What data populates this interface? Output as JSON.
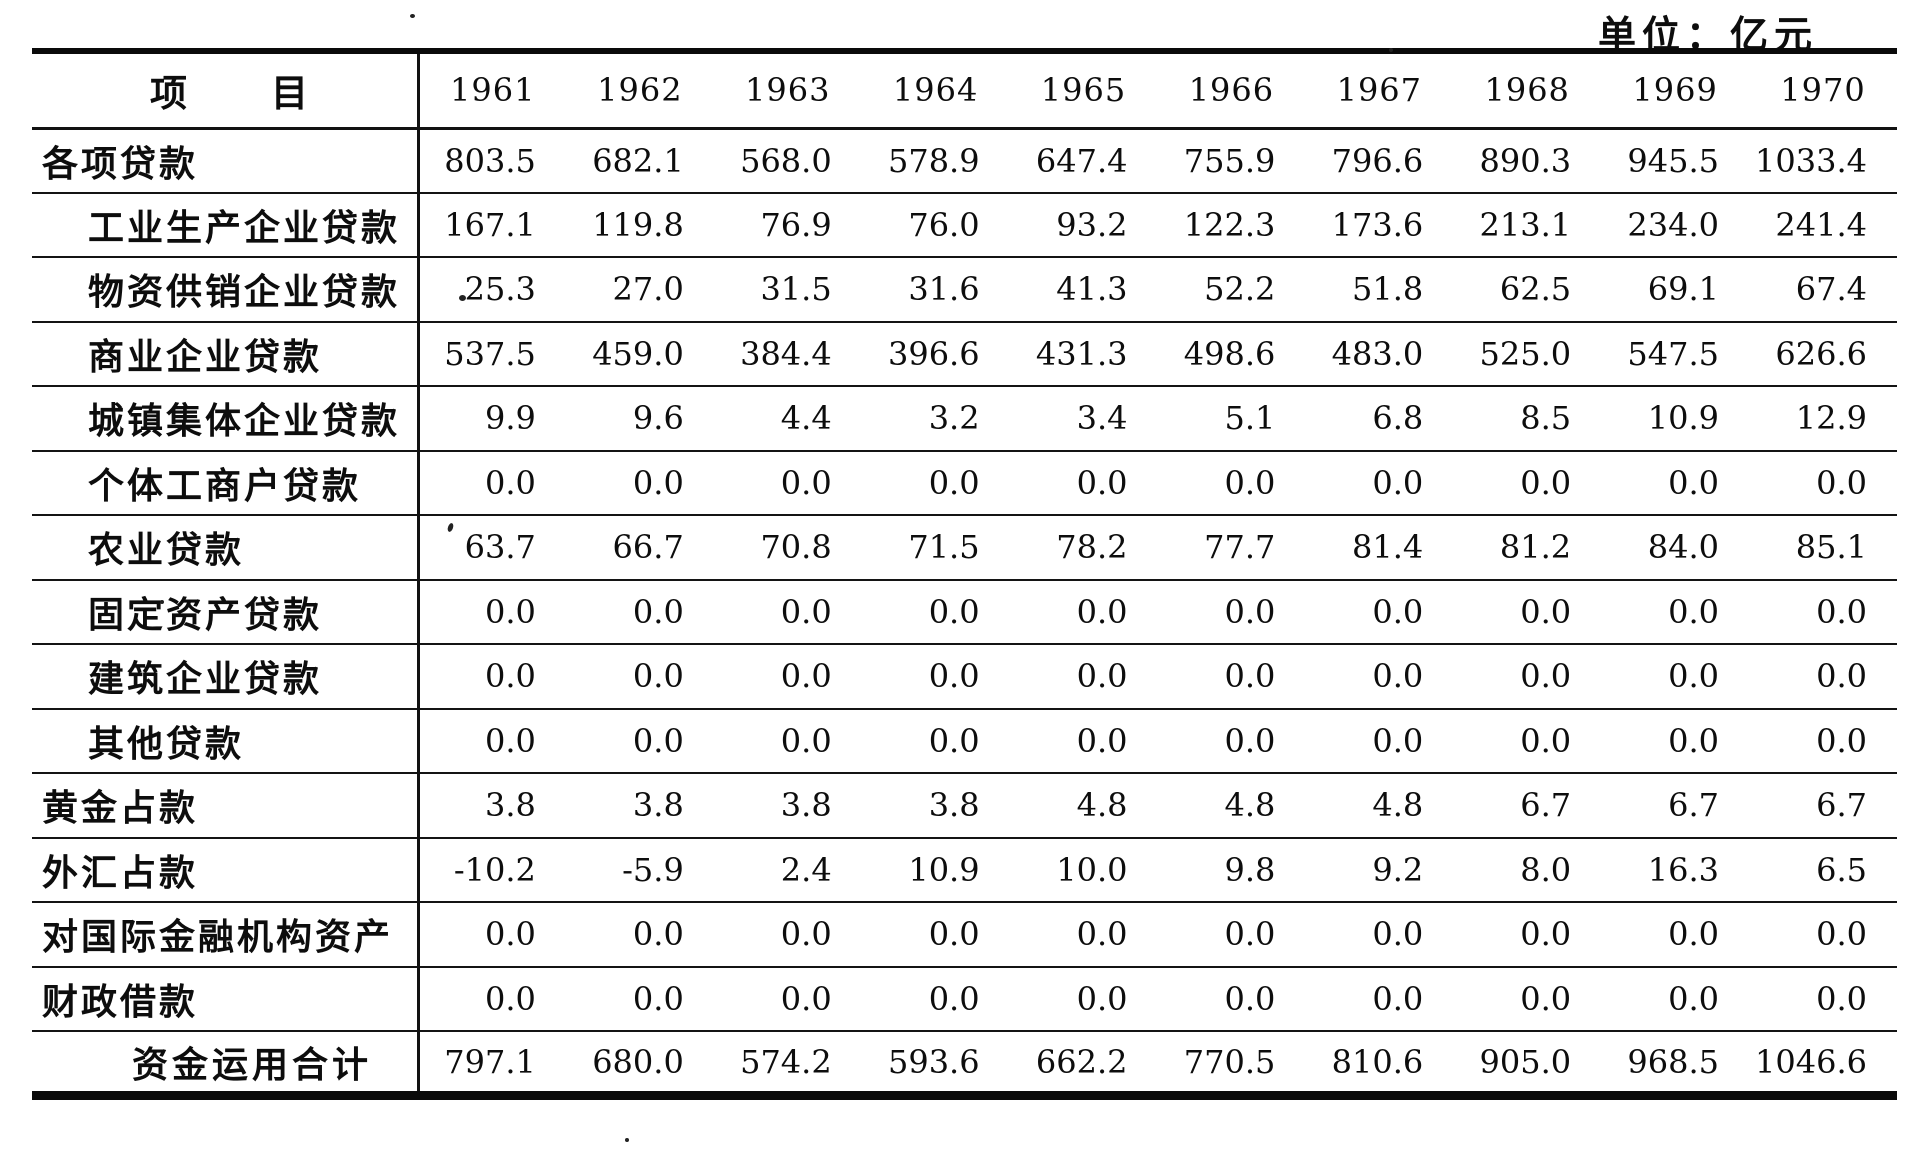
{
  "unit_label": "单位：亿元",
  "colors": {
    "ink": "#0d0d0d",
    "paper": "#ffffff"
  },
  "table": {
    "item_header": {
      "first": "项",
      "second": "目"
    },
    "years": [
      "1961",
      "1962",
      "1963",
      "1964",
      "1965",
      "1966",
      "1967",
      "1968",
      "1969",
      "1970"
    ],
    "rows": [
      {
        "label": "各项贷款",
        "indent": 0,
        "values": [
          "803.5",
          "682.1",
          "568.0",
          "578.9",
          "647.4",
          "755.9",
          "796.6",
          "890.3",
          "945.5",
          "1033.4"
        ]
      },
      {
        "label": "工业生产企业贷款",
        "indent": 1,
        "values": [
          "167.1",
          "119.8",
          "76.9",
          "76.0",
          "93.2",
          "122.3",
          "173.6",
          "213.1",
          "234.0",
          "241.4"
        ]
      },
      {
        "label": "物资供销企业贷款",
        "indent": 1,
        "values": [
          "25.3",
          "27.0",
          "31.5",
          "31.6",
          "41.3",
          "52.2",
          "51.8",
          "62.5",
          "69.1",
          "67.4"
        ]
      },
      {
        "label": "商业企业贷款",
        "indent": 1,
        "values": [
          "537.5",
          "459.0",
          "384.4",
          "396.6",
          "431.3",
          "498.6",
          "483.0",
          "525.0",
          "547.5",
          "626.6"
        ]
      },
      {
        "label": "城镇集体企业贷款",
        "indent": 1,
        "values": [
          "9.9",
          "9.6",
          "4.4",
          "3.2",
          "3.4",
          "5.1",
          "6.8",
          "8.5",
          "10.9",
          "12.9"
        ]
      },
      {
        "label": "个体工商户贷款",
        "indent": 1,
        "values": [
          "0.0",
          "0.0",
          "0.0",
          "0.0",
          "0.0",
          "0.0",
          "0.0",
          "0.0",
          "0.0",
          "0.0"
        ]
      },
      {
        "label": "农业贷款",
        "indent": 1,
        "values": [
          "63.7",
          "66.7",
          "70.8",
          "71.5",
          "78.2",
          "77.7",
          "81.4",
          "81.2",
          "84.0",
          "85.1"
        ]
      },
      {
        "label": "固定资产贷款",
        "indent": 1,
        "values": [
          "0.0",
          "0.0",
          "0.0",
          "0.0",
          "0.0",
          "0.0",
          "0.0",
          "0.0",
          "0.0",
          "0.0"
        ]
      },
      {
        "label": "建筑企业贷款",
        "indent": 1,
        "values": [
          "0.0",
          "0.0",
          "0.0",
          "0.0",
          "0.0",
          "0.0",
          "0.0",
          "0.0",
          "0.0",
          "0.0"
        ]
      },
      {
        "label": "其他贷款",
        "indent": 1,
        "values": [
          "0.0",
          "0.0",
          "0.0",
          "0.0",
          "0.0",
          "0.0",
          "0.0",
          "0.0",
          "0.0",
          "0.0"
        ]
      },
      {
        "label": "黄金占款",
        "indent": 0,
        "values": [
          "3.8",
          "3.8",
          "3.8",
          "3.8",
          "4.8",
          "4.8",
          "4.8",
          "6.7",
          "6.7",
          "6.7"
        ]
      },
      {
        "label": "外汇占款",
        "indent": 0,
        "values": [
          "-10.2",
          "-5.9",
          "2.4",
          "10.9",
          "10.0",
          "9.8",
          "9.2",
          "8.0",
          "16.3",
          "6.5"
        ]
      },
      {
        "label": "对国际金融机构资产",
        "indent": 0,
        "values": [
          "0.0",
          "0.0",
          "0.0",
          "0.0",
          "0.0",
          "0.0",
          "0.0",
          "0.0",
          "0.0",
          "0.0"
        ]
      },
      {
        "label": "财政借款",
        "indent": 0,
        "values": [
          "0.0",
          "0.0",
          "0.0",
          "0.0",
          "0.0",
          "0.0",
          "0.0",
          "0.0",
          "0.0",
          "0.0"
        ]
      },
      {
        "label": "资金运用合计",
        "indent": 2,
        "values": [
          "797.1",
          "680.0",
          "574.2",
          "593.6",
          "662.2",
          "770.5",
          "810.6",
          "905.0",
          "968.5",
          "1046.6"
        ]
      }
    ]
  }
}
